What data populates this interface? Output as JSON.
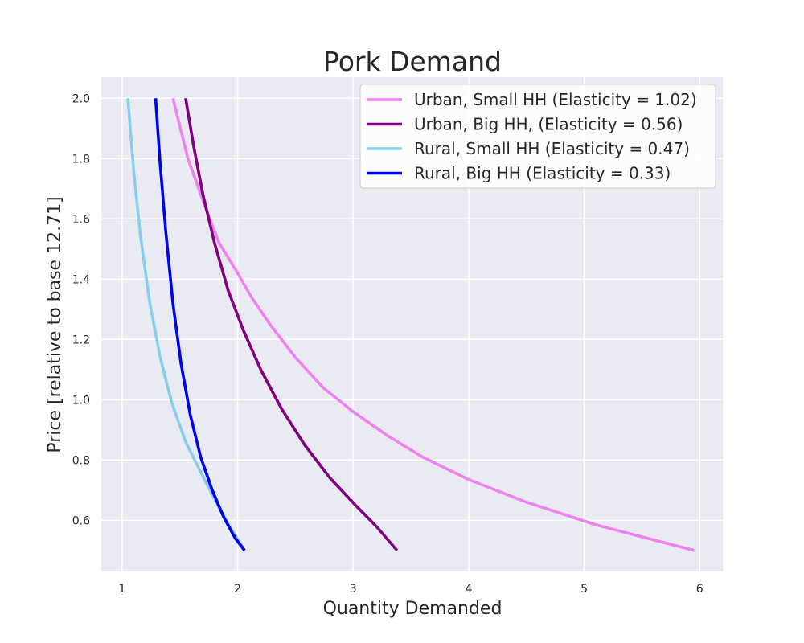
{
  "chart_data": {
    "type": "line",
    "title": "Pork Demand",
    "xlabel": "Quantity Demanded",
    "ylabel": "Price [relative to base 12.71]",
    "xlim": [
      0.82,
      6.2
    ],
    "ylim": [
      0.43,
      2.07
    ],
    "xticks": [
      1,
      2,
      3,
      4,
      5,
      6
    ],
    "yticks": [
      0.6,
      0.8,
      1.0,
      1.2,
      1.4,
      1.6,
      1.8,
      2.0
    ],
    "grid": true,
    "legend_position": "upper right",
    "colors": {
      "plot_background": "#eaeaf2",
      "grid": "#ffffff",
      "figure_background": "#ffffff"
    },
    "series": [
      {
        "name": "Urban, Small HH (Elasticity = 1.02)",
        "color": "#ee82ee",
        "points": [
          [
            1.44,
            2.0
          ],
          [
            1.57,
            1.8
          ],
          [
            1.71,
            1.65
          ],
          [
            1.84,
            1.52
          ],
          [
            2.0,
            1.42
          ],
          [
            2.12,
            1.34
          ],
          [
            2.28,
            1.25
          ],
          [
            2.5,
            1.14
          ],
          [
            2.74,
            1.04
          ],
          [
            3.0,
            0.96
          ],
          [
            3.3,
            0.88
          ],
          [
            3.6,
            0.81
          ],
          [
            4.0,
            0.735
          ],
          [
            4.5,
            0.66
          ],
          [
            5.1,
            0.585
          ],
          [
            5.55,
            0.54
          ],
          [
            5.95,
            0.5
          ]
        ]
      },
      {
        "name": "Urban, Big HH, (Elasticity = 0.56)",
        "color": "#800080",
        "points": [
          [
            1.55,
            2.0
          ],
          [
            1.62,
            1.84
          ],
          [
            1.7,
            1.68
          ],
          [
            1.8,
            1.52
          ],
          [
            1.92,
            1.36
          ],
          [
            2.05,
            1.23
          ],
          [
            2.2,
            1.1
          ],
          [
            2.38,
            0.97
          ],
          [
            2.58,
            0.85
          ],
          [
            2.8,
            0.74
          ],
          [
            3.02,
            0.65
          ],
          [
            3.2,
            0.58
          ],
          [
            3.38,
            0.5
          ]
        ]
      },
      {
        "name": "Rural, Small HH (Elasticity = 0.47)",
        "color": "#87ceeb",
        "points": [
          [
            1.05,
            2.0
          ],
          [
            1.1,
            1.76
          ],
          [
            1.16,
            1.54
          ],
          [
            1.24,
            1.32
          ],
          [
            1.33,
            1.14
          ],
          [
            1.43,
            0.99
          ],
          [
            1.55,
            0.86
          ],
          [
            1.68,
            0.76
          ],
          [
            1.8,
            0.67
          ],
          [
            1.93,
            0.58
          ],
          [
            2.06,
            0.5
          ]
        ]
      },
      {
        "name": "Rural, Big HH (Elasticity = 0.33)",
        "color": "#0000ee",
        "points": [
          [
            1.29,
            2.0
          ],
          [
            1.33,
            1.78
          ],
          [
            1.38,
            1.55
          ],
          [
            1.44,
            1.32
          ],
          [
            1.51,
            1.12
          ],
          [
            1.59,
            0.95
          ],
          [
            1.68,
            0.81
          ],
          [
            1.78,
            0.7
          ],
          [
            1.88,
            0.61
          ],
          [
            1.98,
            0.54
          ],
          [
            2.06,
            0.5
          ]
        ]
      }
    ]
  }
}
